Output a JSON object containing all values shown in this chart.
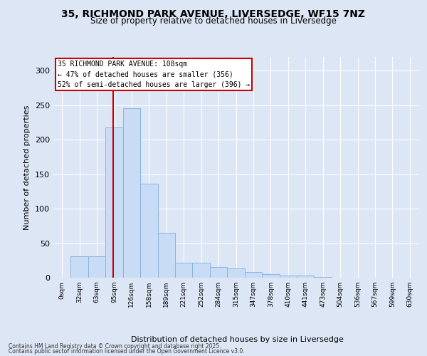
{
  "title_line1": "35, RICHMOND PARK AVENUE, LIVERSEDGE, WF15 7NZ",
  "title_line2": "Size of property relative to detached houses in Liversedge",
  "xlabel": "Distribution of detached houses by size in Liversedge",
  "ylabel": "Number of detached properties",
  "bar_labels": [
    "0sqm",
    "32sqm",
    "63sqm",
    "95sqm",
    "126sqm",
    "158sqm",
    "189sqm",
    "221sqm",
    "252sqm",
    "284sqm",
    "315sqm",
    "347sqm",
    "378sqm",
    "410sqm",
    "441sqm",
    "473sqm",
    "504sqm",
    "536sqm",
    "567sqm",
    "599sqm",
    "630sqm"
  ],
  "bar_values": [
    0,
    31,
    31,
    218,
    246,
    136,
    65,
    22,
    22,
    15,
    13,
    8,
    5,
    3,
    3,
    1,
    0,
    0,
    0,
    0,
    0
  ],
  "bar_color": "#c9dcf5",
  "bar_edgecolor": "#8ab4e0",
  "bar_linewidth": 0.7,
  "vline_color": "#cc0000",
  "ylim": [
    0,
    320
  ],
  "yticks": [
    0,
    50,
    100,
    150,
    200,
    250,
    300
  ],
  "annotation_text": "35 RICHMOND PARK AVENUE: 108sqm\n← 47% of detached houses are smaller (356)\n52% of semi-detached houses are larger (396) →",
  "bg_color": "#dce6f5",
  "grid_color": "#ffffff",
  "footer_line1": "Contains HM Land Registry data © Crown copyright and database right 2025.",
  "footer_line2": "Contains public sector information licensed under the Open Government Licence v3.0."
}
